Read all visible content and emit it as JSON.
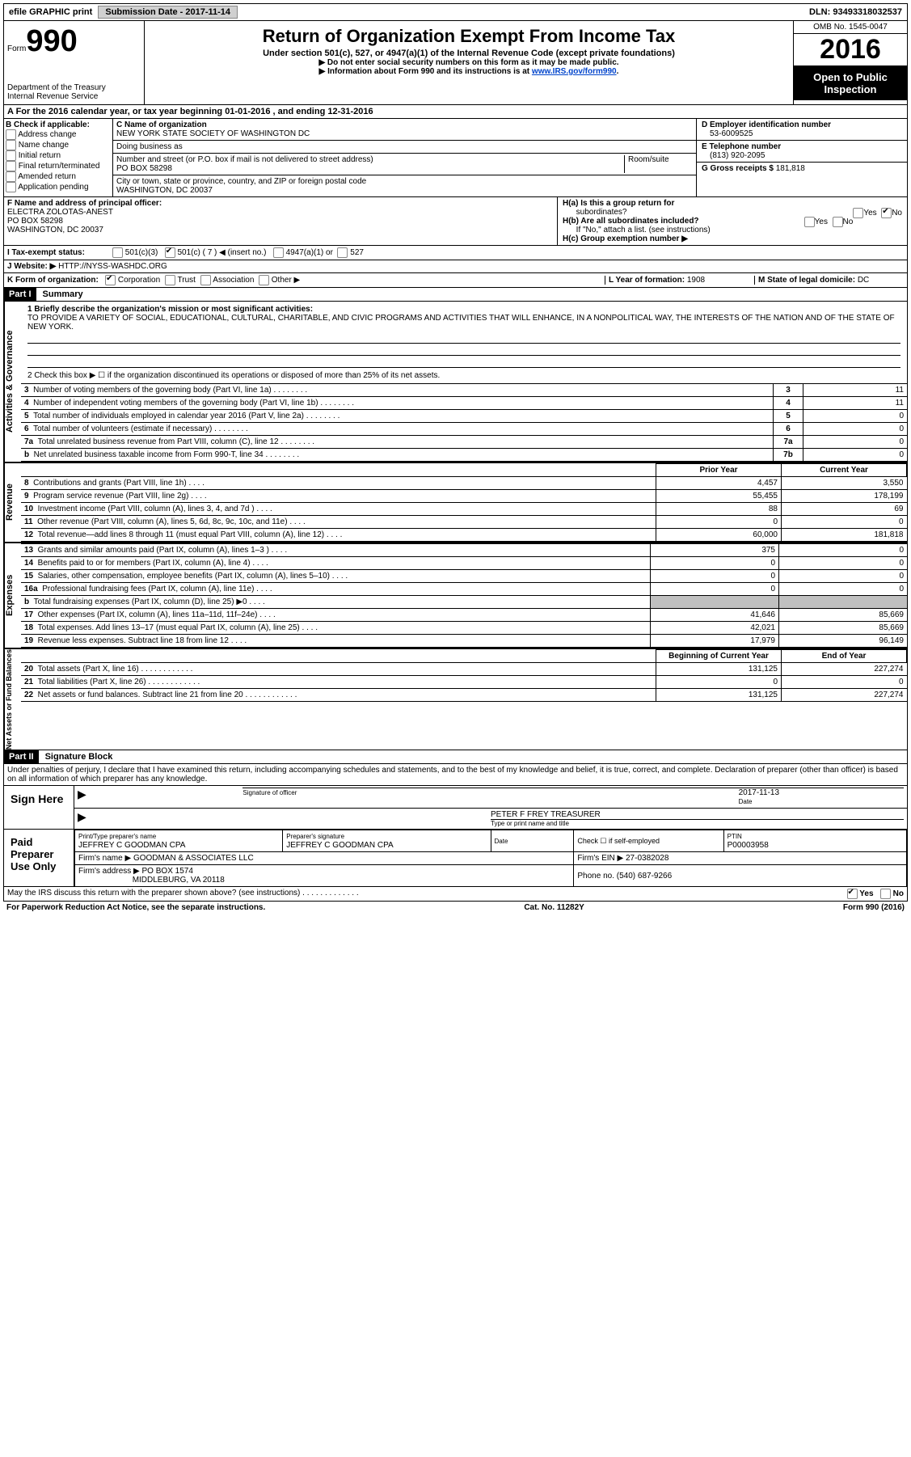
{
  "topbar": {
    "efile": "efile GRAPHIC print",
    "submission": "Submission Date - 2017-11-14",
    "dln": "DLN: 93493318032537"
  },
  "header": {
    "form_label": "Form",
    "form_no": "990",
    "dept1": "Department of the Treasury",
    "dept2": "Internal Revenue Service",
    "title": "Return of Organization Exempt From Income Tax",
    "subtitle": "Under section 501(c), 527, or 4947(a)(1) of the Internal Revenue Code (except private foundations)",
    "arrow1": "▶ Do not enter social security numbers on this form as it may be made public.",
    "arrow2_pre": "▶ Information about Form 990 and its instructions is at ",
    "arrow2_link": "www.IRS.gov/form990",
    "omb": "OMB No. 1545-0047",
    "year": "2016",
    "open1": "Open to Public",
    "open2": "Inspection"
  },
  "rowA": "A  For the 2016 calendar year, or tax year beginning 01-01-2016   , and ending 12-31-2016",
  "sectionB": {
    "b_label": "B Check if applicable:",
    "b_items": [
      "Address change",
      "Name change",
      "Initial return",
      "Final return/terminated",
      "Amended return",
      "Application pending"
    ],
    "c_name_label": "C Name of organization",
    "c_name": "NEW YORK STATE SOCIETY OF WASHINGTON DC",
    "dba_label": "Doing business as",
    "addr_label": "Number and street (or P.O. box if mail is not delivered to street address)",
    "room_label": "Room/suite",
    "addr": "PO BOX 58298",
    "city_label": "City or town, state or province, country, and ZIP or foreign postal code",
    "city": "WASHINGTON, DC  20037",
    "d_label": "D Employer identification number",
    "d_val": "53-6009525",
    "e_label": "E Telephone number",
    "e_val": "(813) 920-2095",
    "g_label": "G Gross receipts $ ",
    "g_val": "181,818"
  },
  "sectionF": {
    "f_label": "F  Name and address of principal officer:",
    "f_name": "ELECTRA ZOLOTAS-ANEST",
    "f_addr1": "PO BOX 58298",
    "f_addr2": "WASHINGTON, DC  20037",
    "ha_label": "H(a)  Is this a group return for",
    "ha_sub": "subordinates?",
    "hb_label": "H(b)  Are all subordinates included?",
    "hb_note": "If \"No,\" attach a list. (see instructions)",
    "hc_label": "H(c)  Group exemption number ▶",
    "yes": "Yes",
    "no": "No"
  },
  "rowI": {
    "label": "I  Tax-exempt status:",
    "c3": "501(c)(3)",
    "c": "501(c) ( 7 ) ◀ (insert no.)",
    "a1": "4947(a)(1) or",
    "527": "527"
  },
  "rowJ": {
    "label": "J  Website: ▶",
    "val": "HTTP://NYSS-WASHDC.ORG"
  },
  "rowK": {
    "label": "K Form of organization:",
    "corp": "Corporation",
    "trust": "Trust",
    "assoc": "Association",
    "other": "Other ▶",
    "l_label": "L Year of formation: ",
    "l_val": "1908",
    "m_label": "M State of legal domicile: ",
    "m_val": "DC"
  },
  "parts": {
    "p1": "Part I",
    "p1_title": "Summary",
    "p2": "Part II",
    "p2_title": "Signature Block"
  },
  "summary": {
    "mission_label": "1  Briefly describe the organization's mission or most significant activities:",
    "mission": "TO PROVIDE A VARIETY OF SOCIAL, EDUCATIONAL, CULTURAL, CHARITABLE, AND CIVIC PROGRAMS AND ACTIVITIES THAT WILL ENHANCE, IN A NONPOLITICAL WAY, THE INTERESTS OF THE NATION AND OF THE STATE OF NEW YORK.",
    "line2": "2   Check this box ▶ ☐  if the organization discontinued its operations or disposed of more than 25% of its net assets.",
    "vert_activities": "Activities & Governance",
    "vert_revenue": "Revenue",
    "vert_expenses": "Expenses",
    "vert_net": "Net Assets or Fund Balances",
    "gov_lines": [
      {
        "n": "3",
        "desc": "Number of voting members of the governing body (Part VI, line 1a)",
        "box": "3",
        "val": "11"
      },
      {
        "n": "4",
        "desc": "Number of independent voting members of the governing body (Part VI, line 1b)",
        "box": "4",
        "val": "11"
      },
      {
        "n": "5",
        "desc": "Total number of individuals employed in calendar year 2016 (Part V, line 2a)",
        "box": "5",
        "val": "0"
      },
      {
        "n": "6",
        "desc": "Total number of volunteers (estimate if necessary)",
        "box": "6",
        "val": "0"
      },
      {
        "n": "7a",
        "desc": "Total unrelated business revenue from Part VIII, column (C), line 12",
        "box": "7a",
        "val": "0"
      },
      {
        "n": "b",
        "desc": "Net unrelated business taxable income from Form 990-T, line 34",
        "box": "7b",
        "val": "0"
      }
    ],
    "col_prior": "Prior Year",
    "col_current": "Current Year",
    "rev_lines": [
      {
        "n": "8",
        "desc": "Contributions and grants (Part VIII, line 1h)",
        "prior": "4,457",
        "curr": "3,550"
      },
      {
        "n": "9",
        "desc": "Program service revenue (Part VIII, line 2g)",
        "prior": "55,455",
        "curr": "178,199"
      },
      {
        "n": "10",
        "desc": "Investment income (Part VIII, column (A), lines 3, 4, and 7d )",
        "prior": "88",
        "curr": "69"
      },
      {
        "n": "11",
        "desc": "Other revenue (Part VIII, column (A), lines 5, 6d, 8c, 9c, 10c, and 11e)",
        "prior": "0",
        "curr": "0"
      },
      {
        "n": "12",
        "desc": "Total revenue—add lines 8 through 11 (must equal Part VIII, column (A), line 12)",
        "prior": "60,000",
        "curr": "181,818"
      }
    ],
    "exp_lines": [
      {
        "n": "13",
        "desc": "Grants and similar amounts paid (Part IX, column (A), lines 1–3 )",
        "prior": "375",
        "curr": "0"
      },
      {
        "n": "14",
        "desc": "Benefits paid to or for members (Part IX, column (A), line 4)",
        "prior": "0",
        "curr": "0"
      },
      {
        "n": "15",
        "desc": "Salaries, other compensation, employee benefits (Part IX, column (A), lines 5–10)",
        "prior": "0",
        "curr": "0"
      },
      {
        "n": "16a",
        "desc": "Professional fundraising fees (Part IX, column (A), line 11e)",
        "prior": "0",
        "curr": "0"
      },
      {
        "n": "b",
        "desc": "Total fundraising expenses (Part IX, column (D), line 25) ▶0",
        "prior": "",
        "curr": "",
        "shade": true
      },
      {
        "n": "17",
        "desc": "Other expenses (Part IX, column (A), lines 11a–11d, 11f–24e)",
        "prior": "41,646",
        "curr": "85,669"
      },
      {
        "n": "18",
        "desc": "Total expenses. Add lines 13–17 (must equal Part IX, column (A), line 25)",
        "prior": "42,021",
        "curr": "85,669"
      },
      {
        "n": "19",
        "desc": "Revenue less expenses. Subtract line 18 from line 12",
        "prior": "17,979",
        "curr": "96,149"
      }
    ],
    "col_begin": "Beginning of Current Year",
    "col_end": "End of Year",
    "net_lines": [
      {
        "n": "20",
        "desc": "Total assets (Part X, line 16)",
        "prior": "131,125",
        "curr": "227,274"
      },
      {
        "n": "21",
        "desc": "Total liabilities (Part X, line 26)",
        "prior": "0",
        "curr": "0"
      },
      {
        "n": "22",
        "desc": "Net assets or fund balances. Subtract line 21 from line 20",
        "prior": "131,125",
        "curr": "227,274"
      }
    ]
  },
  "sig": {
    "penalty": "Under penalties of perjury, I declare that I have examined this return, including accompanying schedules and statements, and to the best of my knowledge and belief, it is true, correct, and complete. Declaration of preparer (other than officer) is based on all information of which preparer has any knowledge.",
    "sign_here": "Sign Here",
    "sig_officer": "Signature of officer",
    "date_label": "Date",
    "date_val": "2017-11-13",
    "name_title": "PETER F FREY TREASURER",
    "name_title_label": "Type or print name and title",
    "paid_label": "Paid Preparer Use Only",
    "prep_name_label": "Print/Type preparer's name",
    "prep_name": "JEFFREY C GOODMAN CPA",
    "prep_sig_label": "Preparer's signature",
    "prep_sig": "JEFFREY C GOODMAN CPA",
    "check_label": "Check ☐ if self-employed",
    "ptin_label": "PTIN",
    "ptin": "P00003958",
    "firm_name_label": "Firm's name    ▶",
    "firm_name": "GOODMAN & ASSOCIATES LLC",
    "firm_ein_label": "Firm's EIN ▶",
    "firm_ein": "27-0382028",
    "firm_addr_label": "Firm's address ▶",
    "firm_addr": "PO BOX 1574",
    "firm_city": "MIDDLEBURG, VA  20118",
    "phone_label": "Phone no. ",
    "phone": "(540) 687-9266",
    "discuss": "May the IRS discuss this return with the preparer shown above? (see instructions)"
  },
  "footer": {
    "left": "For Paperwork Reduction Act Notice, see the separate instructions.",
    "mid": "Cat. No. 11282Y",
    "right": "Form 990 (2016)"
  }
}
